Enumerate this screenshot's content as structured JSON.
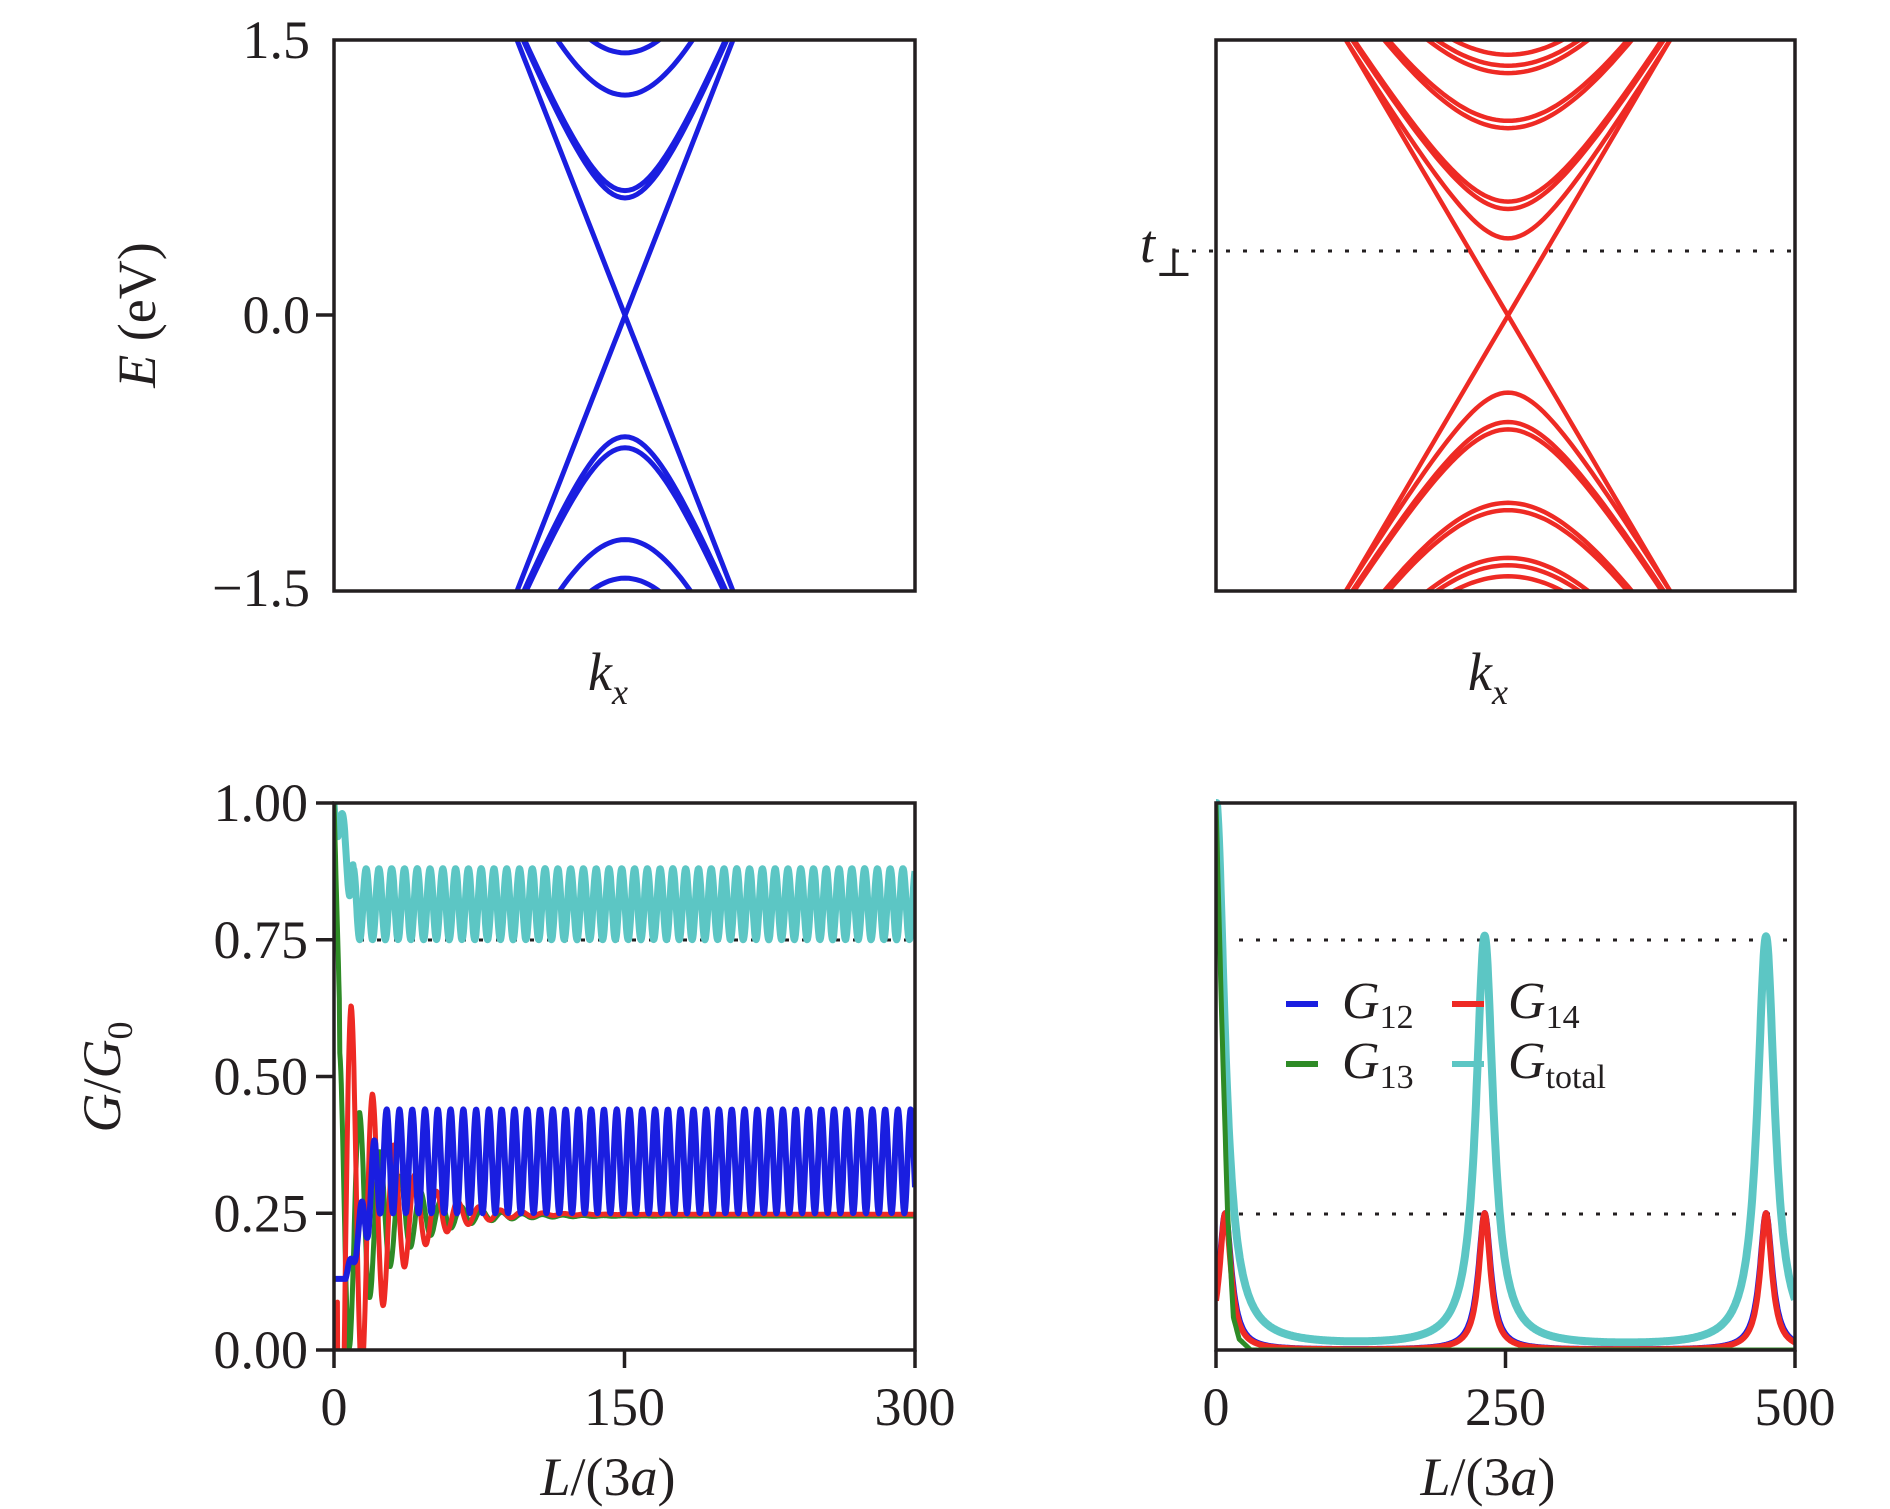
{
  "chart_data": [
    {
      "id": "a",
      "type": "line",
      "title": "",
      "xlabel": "k_x",
      "ylabel": "E (eV)",
      "ylim": [
        -1.5,
        1.5
      ],
      "yticks": [
        "1.5",
        "0.0",
        "−1.5"
      ],
      "ytick_values": [
        1.5,
        0.0,
        -1.5
      ],
      "xticks": [],
      "color": "#1a1ee0",
      "description": "Band structure with linear Dirac crossing at E=0 and parabolic subbands",
      "series": [
        {
          "name": "linear bands",
          "dirac_point": 0.0,
          "type": "linear"
        },
        {
          "name": "conduction subbands",
          "band_minima": [
            0.68,
            0.64,
            1.2,
            1.43
          ]
        },
        {
          "name": "valence subbands",
          "band_maxima": [
            -0.66,
            -0.72,
            -1.22,
            -1.43
          ]
        }
      ],
      "grid": false
    },
    {
      "id": "b",
      "type": "line",
      "title": "",
      "xlabel": "k_x",
      "ylabel": "",
      "ylim": [
        -1.5,
        1.5
      ],
      "color": "#ee2a24",
      "annotation": "t⊥",
      "reference_lines": [
        {
          "y": 0.42,
          "label": "t⊥",
          "style": "dotted"
        }
      ],
      "description": "Band structure with many subbands; Dirac crossing at E=0, first conduction subband minimum at t⊥",
      "series": [
        {
          "name": "linear bands",
          "dirac_point": 0.0
        },
        {
          "name": "conduction subbands",
          "band_minima": [
            0.42,
            0.58,
            0.62,
            1.02,
            1.06,
            1.32,
            1.36,
            1.42
          ]
        },
        {
          "name": "valence subbands",
          "band_maxima": [
            -0.42,
            -0.58,
            -0.62,
            -1.02,
            -1.06,
            -1.32,
            -1.36,
            -1.42
          ]
        }
      ],
      "grid": false
    },
    {
      "id": "c",
      "type": "line",
      "title": "",
      "xlabel": "L/(3a)",
      "ylabel": "G/G₀",
      "xlim": [
        0,
        300
      ],
      "ylim": [
        0,
        1.0
      ],
      "xticks": [
        "0",
        "150",
        "300"
      ],
      "xtick_values": [
        0,
        150,
        300
      ],
      "yticks": [
        "1.00",
        "0.75",
        "0.50",
        "0.25",
        "0.00"
      ],
      "ytick_values": [
        1.0,
        0.75,
        0.5,
        0.25,
        0.0
      ],
      "reference_lines": [
        {
          "y": 0.75,
          "style": "dotted"
        }
      ],
      "series": [
        {
          "name": "G12",
          "color": "#1a1ee0",
          "oscillation": {
            "min": 0.25,
            "max": 0.44,
            "period": 6.6
          },
          "x": [
            0,
            5,
            10,
            20,
            30,
            300
          ],
          "y": [
            0.13,
            0.13,
            0.3,
            0.42,
            0.43,
            0.44
          ]
        },
        {
          "name": "G13",
          "color": "#2e8b26",
          "x": [
            0,
            3,
            8,
            12,
            18,
            24,
            30,
            40,
            60,
            100,
            150,
            300
          ],
          "y": [
            1.0,
            0.6,
            0.03,
            0.25,
            0.43,
            0.15,
            0.33,
            0.2,
            0.23,
            0.24,
            0.24,
            0.245
          ]
        },
        {
          "name": "G14",
          "color": "#ee2a24",
          "x": [
            0,
            4,
            9,
            14,
            20,
            27,
            35,
            50,
            80,
            120,
            200,
            300
          ],
          "y": [
            0.0,
            0.35,
            0.61,
            0.33,
            0.06,
            0.36,
            0.13,
            0.29,
            0.26,
            0.25,
            0.25,
            0.25
          ]
        },
        {
          "name": "Gtotal",
          "color": "#5cc6c4",
          "oscillation": {
            "min": 0.75,
            "max": 0.88,
            "period": 6.6
          },
          "x": [
            0,
            4,
            8,
            12,
            300
          ],
          "y": [
            1.0,
            0.95,
            0.87,
            0.88,
            0.82
          ]
        }
      ],
      "grid": false
    },
    {
      "id": "d",
      "type": "line",
      "title": "",
      "xlabel": "L/(3a)",
      "ylabel": "",
      "xlim": [
        0,
        500
      ],
      "ylim": [
        0,
        1.0
      ],
      "xticks": [
        "0",
        "250",
        "500"
      ],
      "xtick_values": [
        0,
        250,
        500
      ],
      "reference_lines": [
        {
          "y": 0.75,
          "style": "dotted"
        },
        {
          "y": 0.25,
          "style": "dotted"
        }
      ],
      "legend": {
        "position": "center",
        "columns": 2,
        "entries": [
          {
            "label": "G",
            "sub": "12",
            "color": "#1a1ee0"
          },
          {
            "label": "G",
            "sub": "14",
            "color": "#ee2a24"
          },
          {
            "label": "G",
            "sub": "13",
            "color": "#2e8b26"
          },
          {
            "label": "G",
            "sub": "total",
            "color": "#5cc6c4"
          }
        ]
      },
      "series": [
        {
          "name": "G12",
          "color": "#1a1ee0",
          "peaks": [
            {
              "x": 8,
              "y": 0.25
            },
            {
              "x": 232,
              "y": 0.25
            },
            {
              "x": 475,
              "y": 0.25
            }
          ],
          "baseline": 0.0
        },
        {
          "name": "G13",
          "color": "#2e8b26",
          "x": [
            0,
            5,
            10,
            15,
            20,
            30,
            500
          ],
          "y": [
            1.0,
            0.6,
            0.25,
            0.06,
            0.02,
            0.0,
            0.0
          ]
        },
        {
          "name": "G14",
          "color": "#ee2a24",
          "peaks": [
            {
              "x": 8,
              "y": 0.25
            },
            {
              "x": 232,
              "y": 0.25
            },
            {
              "x": 475,
              "y": 0.25
            }
          ],
          "baseline": 0.0
        },
        {
          "name": "Gtotal",
          "color": "#5cc6c4",
          "peaks": [
            {
              "x": 0,
              "y": 1.0
            },
            {
              "x": 232,
              "y": 0.75
            },
            {
              "x": 475,
              "y": 0.75
            }
          ],
          "baseline": 0.01
        }
      ],
      "grid": false
    }
  ]
}
